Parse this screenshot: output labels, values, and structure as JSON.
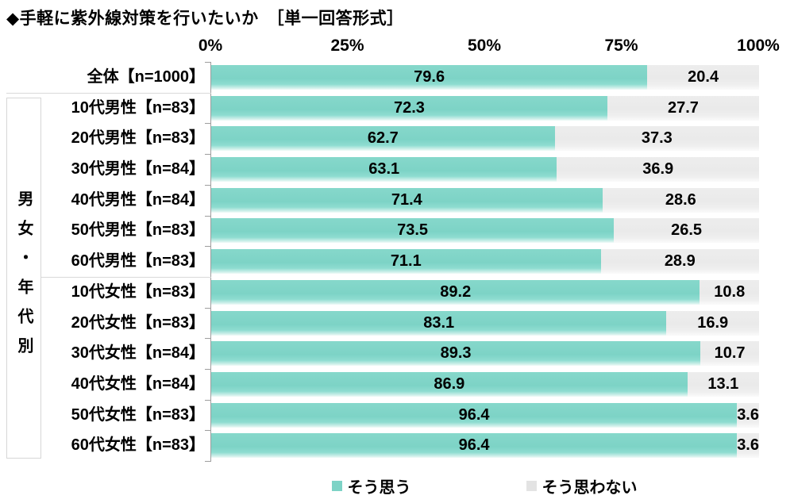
{
  "chart_data": {
    "type": "bar",
    "orientation": "horizontal",
    "stacked": true,
    "title": "◆手軽に紫外線対策を行いたいか　［単一回答形式］",
    "group_label": "男女・年代別",
    "categories": [
      "全体【n=1000】",
      "10代男性【n=83】",
      "20代男性【n=83】",
      "30代男性【n=84】",
      "40代男性【n=84】",
      "50代男性【n=83】",
      "60代男性【n=83】",
      "10代女性【n=83】",
      "20代女性【n=83】",
      "30代女性【n=84】",
      "40代女性【n=84】",
      "50代女性【n=83】",
      "60代女性【n=83】"
    ],
    "series": [
      {
        "name": "そう思う",
        "color": "#7DD3C6",
        "values": [
          79.6,
          72.3,
          62.7,
          63.1,
          71.4,
          73.5,
          71.1,
          89.2,
          83.1,
          89.3,
          86.9,
          96.4,
          96.4
        ]
      },
      {
        "name": "そう思わない",
        "color": "#E3E3E3",
        "values": [
          20.4,
          27.7,
          37.3,
          36.9,
          28.6,
          26.5,
          28.9,
          10.8,
          16.9,
          10.7,
          13.1,
          3.6,
          3.6
        ]
      }
    ],
    "x_axis": {
      "ticks": [
        "0%",
        "25%",
        "50%",
        "75%",
        "100%"
      ],
      "range": [
        0,
        100
      ]
    },
    "legend_position": "bottom",
    "axis_color": "#9D9D9D"
  }
}
